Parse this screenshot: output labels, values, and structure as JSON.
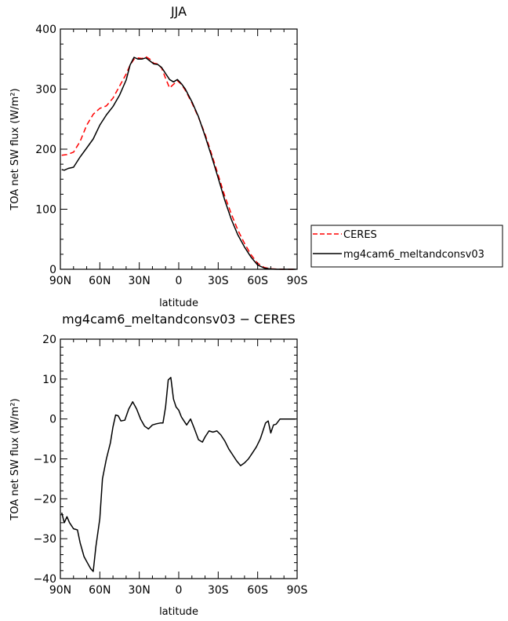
{
  "chart_data": [
    {
      "type": "line",
      "title": "JJA",
      "xlabel": "latitude",
      "ylabel": "TOA net SW flux (W/m²)",
      "xlim": [
        90,
        -90
      ],
      "ylim": [
        0,
        400
      ],
      "xticks": [
        90,
        60,
        30,
        0,
        -30,
        -60,
        -90
      ],
      "xticklabels": [
        "90N",
        "60N",
        "30N",
        "0",
        "30S",
        "60S",
        "90S"
      ],
      "yticks": [
        0,
        100,
        200,
        300,
        400
      ],
      "yticklabels": [
        "0",
        "100",
        "200",
        "300",
        "400"
      ],
      "legend": "right",
      "series": [
        {
          "name": "CERES",
          "color": "#ff0000",
          "style": "dashed",
          "x": [
            89,
            85,
            80,
            75,
            70,
            65,
            60,
            55,
            50,
            45,
            40,
            37,
            34,
            31,
            28,
            25,
            22,
            19,
            16,
            13,
            10,
            7,
            4,
            1,
            -2,
            -5,
            -10,
            -15,
            -20,
            -25,
            -30,
            -35,
            -40,
            -45,
            -50,
            -55,
            -60,
            -65,
            -70,
            -75,
            -80,
            -85,
            -89
          ],
          "y": [
            190,
            191,
            195,
            213,
            240,
            258,
            268,
            272,
            285,
            305,
            325,
            340,
            350,
            352,
            351,
            354,
            350,
            343,
            342,
            335,
            318,
            302,
            308,
            314,
            308,
            298,
            277,
            253,
            225,
            192,
            157,
            122,
            92,
            65,
            43,
            24,
            10,
            3,
            0.8,
            0.2,
            0,
            0,
            0
          ]
        },
        {
          "name": "mg4cam6_meltandconsv03",
          "color": "#000000",
          "style": "solid",
          "x": [
            89,
            87,
            84,
            80,
            75,
            70,
            65,
            60,
            55,
            50,
            45,
            40,
            37,
            34,
            31,
            28,
            25,
            22,
            19,
            16,
            13,
            10,
            7,
            4,
            1,
            -2,
            -5,
            -10,
            -15,
            -20,
            -25,
            -30,
            -35,
            -40,
            -45,
            -50,
            -55,
            -60,
            -65,
            -70,
            -75,
            -80,
            -85,
            -89
          ],
          "y": [
            166,
            165,
            168,
            170,
            187,
            202,
            217,
            240,
            257,
            271,
            290,
            315,
            340,
            353,
            350,
            350,
            352,
            347,
            342,
            341,
            336,
            326,
            316,
            312,
            316,
            309,
            300,
            279,
            254,
            222,
            188,
            152,
            115,
            83,
            57,
            37,
            20,
            7,
            2,
            0.5,
            0,
            0,
            0,
            0
          ]
        }
      ]
    },
    {
      "type": "line",
      "title": "mg4cam6_meltandconsv03 − CERES",
      "xlabel": "latitude",
      "ylabel": "TOA net SW flux (W/m²)",
      "xlim": [
        90,
        -90
      ],
      "ylim": [
        -40,
        20
      ],
      "xticks": [
        90,
        60,
        30,
        0,
        -30,
        -60,
        -90
      ],
      "xticklabels": [
        "90N",
        "60N",
        "30N",
        "0",
        "30S",
        "60S",
        "90S"
      ],
      "yticks": [
        -40,
        -30,
        -20,
        -10,
        0,
        10,
        20
      ],
      "yticklabels": [
        "−40",
        "−30",
        "−20",
        "−10",
        "0",
        "10",
        "20"
      ],
      "series": [
        {
          "color": "#000000",
          "style": "solid",
          "x": [
            89,
            87,
            85,
            83,
            80,
            77,
            75,
            72,
            69,
            67,
            65,
            63,
            60,
            58,
            55,
            52,
            50,
            48,
            46,
            44,
            41,
            38,
            35,
            32,
            29,
            26,
            23,
            20,
            17,
            14,
            12,
            10,
            8,
            6,
            4,
            2,
            0,
            -2,
            -4,
            -6,
            -9,
            -12,
            -15,
            -18,
            -20,
            -23,
            -26,
            -29,
            -32,
            -35,
            -38,
            -41,
            -44,
            -47,
            -50,
            -53,
            -56,
            -59,
            -62,
            -64,
            -66,
            -68,
            -70,
            -72,
            -74,
            -77,
            -80,
            -85,
            -89
          ],
          "y": [
            -23.5,
            -26,
            -24.5,
            -26,
            -27.5,
            -27.8,
            -31,
            -34.5,
            -36.3,
            -37.5,
            -38.2,
            -32,
            -25,
            -15,
            -10,
            -6,
            -2,
            1,
            0.8,
            -0.5,
            -0.3,
            2.5,
            4.3,
            2.5,
            0,
            -1.8,
            -2.5,
            -1.5,
            -1.2,
            -1,
            -1,
            3,
            9.8,
            10.4,
            5,
            3,
            2.2,
            0.5,
            -0.5,
            -1.5,
            0,
            -2.5,
            -5.2,
            -5.8,
            -4.5,
            -3,
            -3.3,
            -3,
            -4,
            -5.5,
            -7.5,
            -9,
            -10.5,
            -11.7,
            -11,
            -10,
            -8.5,
            -7,
            -5,
            -3,
            -1,
            -0.5,
            -3.5,
            -1.5,
            -1.3,
            0,
            0,
            0,
            0
          ]
        }
      ]
    }
  ],
  "legend": {
    "items": [
      {
        "label": "CERES",
        "color": "#ff0000",
        "style": "dashed"
      },
      {
        "label": "mg4cam6_meltandconsv03",
        "color": "#000000",
        "style": "solid"
      }
    ]
  }
}
